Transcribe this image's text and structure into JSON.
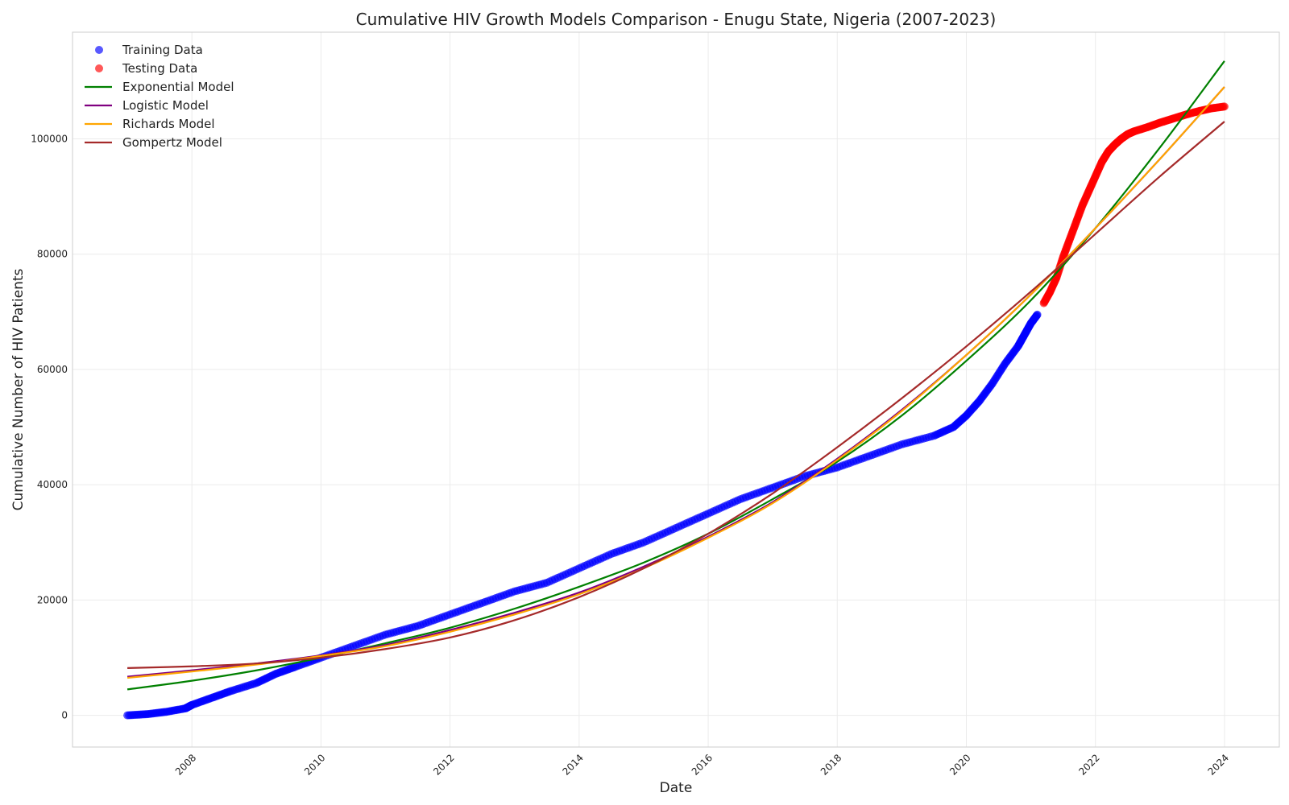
{
  "chart_data": {
    "type": "line",
    "title": "Cumulative HIV Growth Models Comparison - Enugu State, Nigeria (2007-2023)",
    "xlabel": "Date",
    "ylabel": "Cumulative Number of HIV Patients",
    "xlim": [
      2006.15,
      2024.85
    ],
    "ylim": [
      -5500,
      118500
    ],
    "x_ticks": [
      "2008",
      "2010",
      "2012",
      "2014",
      "2016",
      "2018",
      "2020",
      "2022",
      "2024"
    ],
    "y_ticks": [
      "0",
      "20000",
      "40000",
      "60000",
      "80000",
      "100000"
    ],
    "grid": true,
    "legend_position": "top-left",
    "series": [
      {
        "name": "Training Data",
        "kind": "scatter",
        "color": "#0000ff",
        "x": [
          2007.0,
          2007.3,
          2007.6,
          2007.9,
          2008.0,
          2008.3,
          2008.6,
          2009.0,
          2009.3,
          2009.6,
          2010.0,
          2010.5,
          2011.0,
          2011.5,
          2012.0,
          2012.5,
          2013.0,
          2013.5,
          2014.0,
          2014.5,
          2015.0,
          2015.5,
          2016.0,
          2016.5,
          2017.0,
          2017.5,
          2018.0,
          2018.5,
          2019.0,
          2019.5,
          2019.8,
          2020.0,
          2020.2,
          2020.4,
          2020.6,
          2020.8,
          2020.9,
          2021.0,
          2021.1
        ],
        "y": [
          0,
          200,
          600,
          1200,
          1800,
          3000,
          4200,
          5600,
          7200,
          8400,
          10000,
          12000,
          14000,
          15500,
          17500,
          19500,
          21500,
          23000,
          25500,
          28000,
          30000,
          32500,
          35000,
          37500,
          39500,
          41500,
          43000,
          45000,
          47000,
          48500,
          50000,
          52000,
          54500,
          57500,
          61000,
          64000,
          66000,
          68000,
          69500
        ]
      },
      {
        "name": "Testing Data",
        "kind": "scatter",
        "color": "#ff0000",
        "x": [
          2021.2,
          2021.3,
          2021.4,
          2021.5,
          2021.6,
          2021.7,
          2021.8,
          2021.9,
          2022.0,
          2022.1,
          2022.2,
          2022.3,
          2022.4,
          2022.5,
          2022.6,
          2022.8,
          2023.0,
          2023.2,
          2023.4,
          2023.6,
          2023.8,
          2024.0
        ],
        "y": [
          71500,
          73500,
          76000,
          79500,
          82500,
          85500,
          88500,
          91000,
          93500,
          96000,
          97800,
          99000,
          100000,
          100800,
          101300,
          102000,
          102800,
          103500,
          104200,
          104800,
          105300,
          105600
        ]
      },
      {
        "name": "Exponential Model",
        "kind": "line",
        "color": "#008000",
        "x": [
          2007,
          2008,
          2009,
          2010,
          2011,
          2012,
          2013,
          2014,
          2015,
          2016,
          2017,
          2018,
          2019,
          2020,
          2021,
          2022,
          2023,
          2024
        ],
        "y": [
          4500,
          6000,
          7800,
          10000,
          12500,
          15200,
          18500,
          22300,
          26500,
          31500,
          37500,
          44000,
          52000,
          61500,
          72000,
          84500,
          98500,
          113500
        ]
      },
      {
        "name": "Logistic Model",
        "kind": "line",
        "color": "#800080",
        "x": [
          2007,
          2008,
          2009,
          2010,
          2011,
          2012,
          2013,
          2014,
          2015,
          2016,
          2017,
          2018,
          2019,
          2020,
          2021,
          2022,
          2023,
          2024
        ],
        "y": [
          6700,
          7800,
          9000,
          10400,
          12200,
          14800,
          17800,
          21300,
          25800,
          31000,
          37000,
          44500,
          53000,
          62500,
          73000,
          84500,
          96500,
          109000
        ]
      },
      {
        "name": "Richards Model",
        "kind": "line",
        "color": "#ffa500",
        "x": [
          2007,
          2008,
          2009,
          2010,
          2011,
          2012,
          2013,
          2014,
          2015,
          2016,
          2017,
          2018,
          2019,
          2020,
          2021,
          2022,
          2023,
          2024
        ],
        "y": [
          6500,
          7600,
          8800,
          10300,
          12000,
          14500,
          17500,
          21000,
          25500,
          30800,
          36800,
          44300,
          52800,
          62500,
          73000,
          84500,
          96500,
          109000
        ]
      },
      {
        "name": "Gompertz Model",
        "kind": "line",
        "color": "#a52a2a",
        "x": [
          2007,
          2008,
          2009,
          2010,
          2011,
          2012,
          2013,
          2014,
          2015,
          2016,
          2017,
          2018,
          2019,
          2020,
          2021,
          2022,
          2023,
          2024
        ],
        "y": [
          8200,
          8500,
          9000,
          10000,
          11500,
          13500,
          16500,
          20500,
          25500,
          31500,
          38500,
          46500,
          55000,
          64000,
          73500,
          83500,
          93500,
          103000
        ]
      }
    ]
  }
}
